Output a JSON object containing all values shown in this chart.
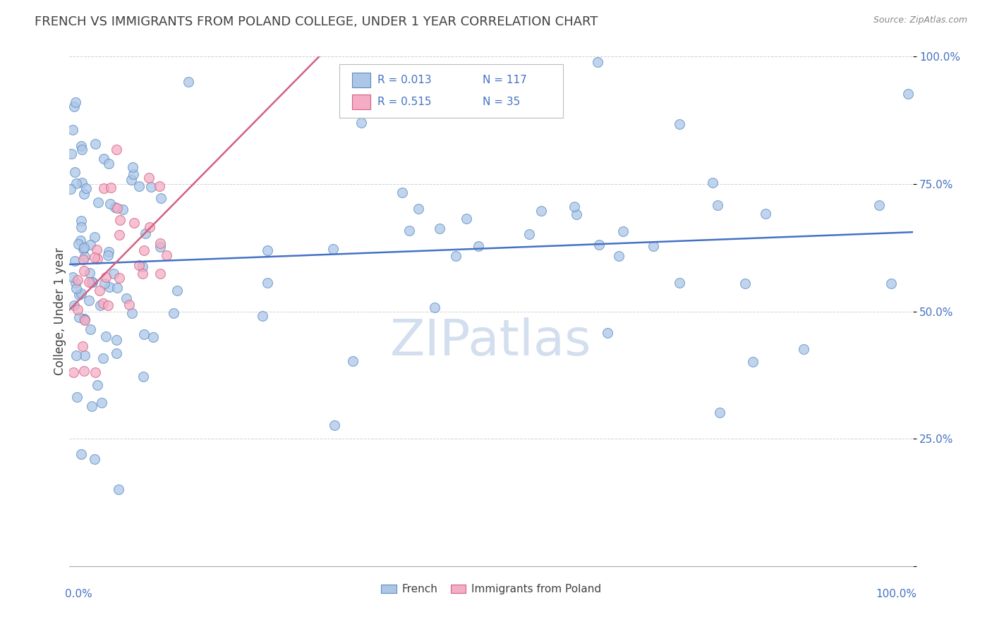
{
  "title": "FRENCH VS IMMIGRANTS FROM POLAND COLLEGE, UNDER 1 YEAR CORRELATION CHART",
  "source": "Source: ZipAtlas.com",
  "ylabel": "College, Under 1 year",
  "xlim": [
    0.0,
    1.0
  ],
  "ylim": [
    0.0,
    1.0
  ],
  "french_R": 0.013,
  "french_N": 117,
  "poland_R": 0.515,
  "poland_N": 35,
  "french_color": "#adc6e8",
  "poland_color": "#f4adc4",
  "french_edge_color": "#5b8ec4",
  "poland_edge_color": "#d46080",
  "french_line_color": "#4472c4",
  "poland_line_color": "#d46080",
  "axis_label_color": "#4472c4",
  "title_color": "#404040",
  "source_color": "#888888",
  "grid_color": "#d0d0d0",
  "watermark_color": "#ccdaec",
  "background_color": "#ffffff",
  "legend_border_color": "#bbbbbb",
  "ytick_positions": [
    0.0,
    0.25,
    0.5,
    0.75,
    1.0
  ],
  "ytick_labels": [
    "",
    "25.0%",
    "50.0%",
    "75.0%",
    "100.0%"
  ],
  "marker_size": 100,
  "marker_alpha": 0.75,
  "marker_linewidth": 0.8
}
